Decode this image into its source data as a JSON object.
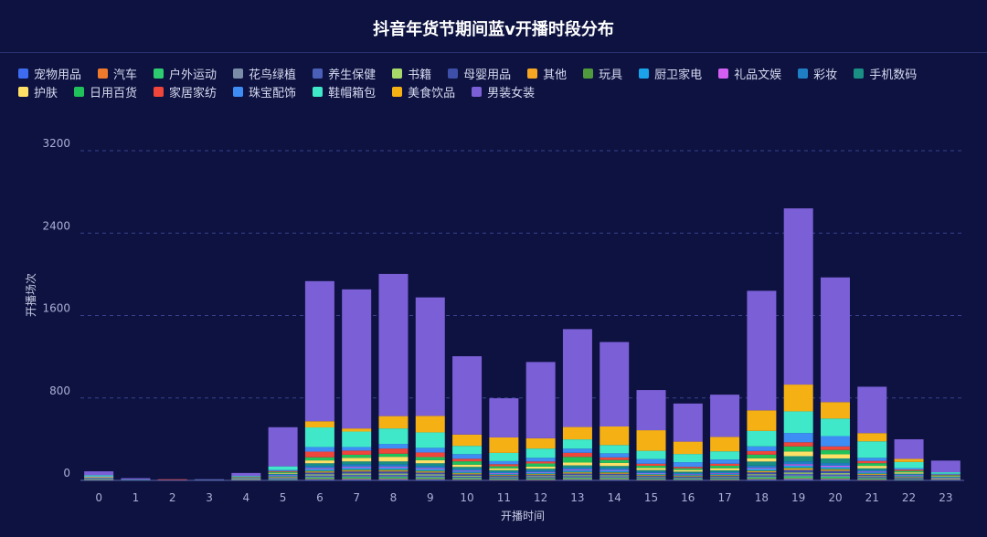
{
  "chart_data": {
    "type": "bar",
    "stacked": true,
    "title": "抖音年货节期间蓝v开播时段分布",
    "xlabel": "开播时间",
    "ylabel": "开播场次",
    "ylim": [
      0,
      3200
    ],
    "yticks": [
      0,
      800,
      1600,
      2400,
      3200
    ],
    "grid": true,
    "legend_position": "top-left",
    "categories": [
      "0",
      "1",
      "2",
      "3",
      "4",
      "5",
      "6",
      "7",
      "8",
      "9",
      "10",
      "11",
      "12",
      "13",
      "14",
      "15",
      "16",
      "17",
      "18",
      "19",
      "20",
      "21",
      "22",
      "23"
    ],
    "series": [
      {
        "name": "宠物用品",
        "color": "#3d6cf0",
        "values": [
          2,
          0,
          0,
          0,
          1,
          3,
          10,
          12,
          12,
          10,
          7,
          5,
          6,
          8,
          8,
          5,
          4,
          5,
          10,
          13,
          12,
          6,
          4,
          2
        ]
      },
      {
        "name": "汽车",
        "color": "#f07a2c",
        "values": [
          1,
          0,
          5,
          0,
          1,
          2,
          6,
          7,
          7,
          6,
          5,
          3,
          4,
          5,
          5,
          3,
          3,
          3,
          6,
          8,
          7,
          4,
          2,
          1
        ]
      },
      {
        "name": "户外运动",
        "color": "#2ecc71",
        "values": [
          2,
          1,
          0,
          1,
          2,
          5,
          12,
          14,
          14,
          12,
          10,
          8,
          9,
          12,
          11,
          8,
          7,
          8,
          14,
          18,
          16,
          10,
          6,
          3
        ]
      },
      {
        "name": "花鸟绿植",
        "color": "#7b8ca8",
        "values": [
          1,
          0,
          0,
          0,
          1,
          3,
          8,
          9,
          9,
          8,
          6,
          5,
          6,
          7,
          7,
          5,
          4,
          5,
          8,
          10,
          9,
          6,
          3,
          2
        ]
      },
      {
        "name": "养生保健",
        "color": "#4a5fb8",
        "values": [
          2,
          1,
          0,
          0,
          2,
          5,
          12,
          13,
          13,
          12,
          9,
          7,
          8,
          10,
          10,
          7,
          6,
          7,
          12,
          15,
          14,
          8,
          5,
          3
        ]
      },
      {
        "name": "书籍",
        "color": "#a6d96a",
        "values": [
          2,
          1,
          0,
          1,
          2,
          4,
          10,
          11,
          11,
          10,
          8,
          6,
          7,
          9,
          9,
          6,
          5,
          6,
          10,
          13,
          12,
          7,
          4,
          2
        ]
      },
      {
        "name": "母婴用品",
        "color": "#3d4fa8",
        "values": [
          3,
          1,
          0,
          1,
          3,
          8,
          18,
          20,
          20,
          18,
          14,
          11,
          12,
          16,
          15,
          11,
          9,
          10,
          18,
          24,
          22,
          12,
          7,
          4
        ]
      },
      {
        "name": "其他",
        "color": "#f5a623",
        "values": [
          3,
          1,
          0,
          1,
          2,
          6,
          10,
          10,
          10,
          10,
          8,
          6,
          7,
          9,
          9,
          7,
          6,
          6,
          10,
          14,
          12,
          8,
          5,
          3
        ]
      },
      {
        "name": "玩具",
        "color": "#4f9a3c",
        "values": [
          2,
          1,
          0,
          0,
          1,
          3,
          8,
          9,
          9,
          8,
          7,
          5,
          6,
          7,
          7,
          5,
          4,
          5,
          8,
          10,
          9,
          6,
          3,
          2
        ]
      },
      {
        "name": "厨卫家电",
        "color": "#1aa3e8",
        "values": [
          2,
          1,
          0,
          1,
          3,
          6,
          15,
          16,
          16,
          15,
          12,
          9,
          10,
          13,
          12,
          9,
          8,
          9,
          15,
          19,
          17,
          11,
          6,
          3
        ]
      },
      {
        "name": "礼品文娱",
        "color": "#d35ff2",
        "values": [
          2,
          0,
          0,
          0,
          2,
          4,
          10,
          11,
          11,
          10,
          8,
          6,
          7,
          9,
          8,
          6,
          5,
          6,
          10,
          13,
          12,
          7,
          4,
          2
        ]
      },
      {
        "name": "彩妆",
        "color": "#1f7fc4",
        "values": [
          3,
          1,
          0,
          1,
          3,
          8,
          22,
          24,
          24,
          22,
          17,
          13,
          15,
          19,
          18,
          13,
          11,
          13,
          22,
          28,
          26,
          15,
          8,
          4
        ]
      },
      {
        "name": "手机数码",
        "color": "#1a8f84",
        "values": [
          3,
          1,
          0,
          2,
          3,
          8,
          25,
          28,
          28,
          25,
          20,
          15,
          17,
          22,
          21,
          15,
          13,
          15,
          40,
          50,
          45,
          17,
          9,
          5
        ]
      },
      {
        "name": "护肤",
        "color": "#ffe066",
        "values": [
          3,
          0,
          0,
          0,
          3,
          8,
          28,
          35,
          45,
          30,
          22,
          18,
          20,
          27,
          30,
          20,
          16,
          20,
          32,
          45,
          40,
          24,
          12,
          6
        ]
      },
      {
        "name": "日用百货",
        "color": "#20c05a",
        "values": [
          4,
          0,
          0,
          0,
          4,
          10,
          30,
          30,
          30,
          30,
          32,
          20,
          30,
          55,
          28,
          22,
          16,
          24,
          35,
          50,
          42,
          26,
          14,
          8
        ]
      },
      {
        "name": "家居家纺",
        "color": "#f0453a",
        "values": [
          2,
          0,
          6,
          0,
          3,
          8,
          55,
          40,
          50,
          45,
          25,
          20,
          20,
          40,
          25,
          20,
          14,
          20,
          35,
          40,
          35,
          22,
          12,
          6
        ]
      },
      {
        "name": "珠宝配饰",
        "color": "#3d8df5",
        "values": [
          3,
          0,
          0,
          0,
          3,
          10,
          45,
          35,
          45,
          45,
          45,
          30,
          35,
          40,
          40,
          45,
          45,
          40,
          45,
          90,
          100,
          30,
          15,
          8
        ]
      },
      {
        "name": "鞋帽箱包",
        "color": "#3ee8c8",
        "values": [
          10,
          0,
          0,
          0,
          5,
          35,
          190,
          150,
          150,
          150,
          80,
          80,
          90,
          90,
          80,
          80,
          80,
          80,
          150,
          210,
          170,
          160,
          60,
          15
        ]
      },
      {
        "name": "美食饮品",
        "color": "#f5b014",
        "values": [
          0,
          0,
          0,
          0,
          0,
          0,
          60,
          30,
          120,
          160,
          110,
          150,
          100,
          120,
          180,
          200,
          120,
          140,
          200,
          260,
          160,
          80,
          30,
          0
        ]
      },
      {
        "name": "男装女装",
        "color": "#7b5fd6",
        "values": [
          38,
          12,
          0,
          3,
          28,
          380,
          1360,
          1350,
          1380,
          1150,
          760,
          380,
          740,
          950,
          820,
          390,
          370,
          410,
          1160,
          1710,
          1210,
          450,
          190,
          113
        ]
      }
    ]
  }
}
